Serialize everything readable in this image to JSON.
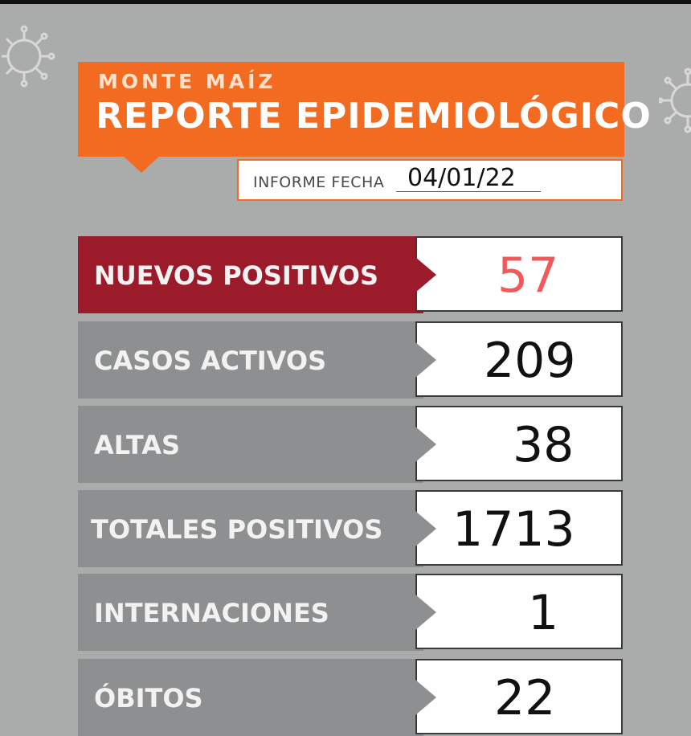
{
  "header": {
    "place": "MONTE MAÍZ",
    "title": "REPORTE EPIDEMIOLÓGICO",
    "date_label": "INFORME FECHA",
    "date_value": "04/01/22"
  },
  "rows": [
    {
      "label": "NUEVOS POSITIVOS",
      "value": "57"
    },
    {
      "label": "CASOS ACTIVOS",
      "value": "209"
    },
    {
      "label": "ALTAS",
      "value": "38"
    },
    {
      "label": "TOTALES POSITIVOS",
      "value": "1713"
    },
    {
      "label": "INTERNACIONES",
      "value": "1"
    },
    {
      "label": "ÓBITOS",
      "value": "22"
    }
  ],
  "colors": {
    "background": "#aaabab",
    "header_orange": "#f26b21",
    "highlight_red": "#9b1b2b",
    "highlight_value": "#f15a5a",
    "label_gray": "#8e8f90"
  },
  "icons": [
    "virus-icon",
    "virus-icon"
  ]
}
